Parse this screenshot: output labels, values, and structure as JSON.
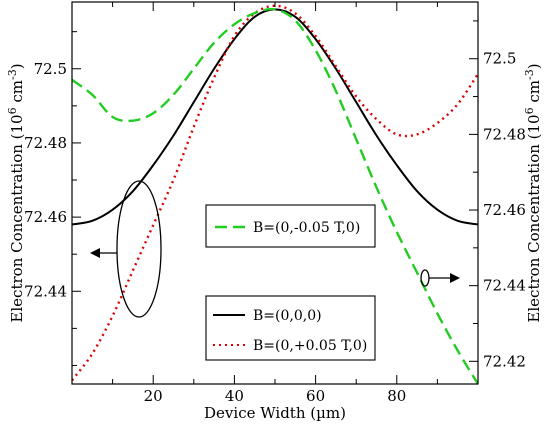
{
  "chart_data": {
    "type": "line",
    "title": "",
    "xlabel": "Device Width (µm)",
    "ylabel_left": "Electron Concentration (10",
    "ylabel_left_exp": "6",
    "ylabel_left_unit": " cm",
    "ylabel_left_unit_exp": "-3",
    "ylabel_left_close": ")",
    "ylabel_right": "Electron Concentration (10",
    "ylabel_right_exp": "6",
    "ylabel_right_unit": " cm",
    "ylabel_right_unit_exp": "-3",
    "ylabel_right_close": ")",
    "xlim": [
      0,
      100
    ],
    "ylim_left": [
      72.415,
      72.518
    ],
    "ylim_right": [
      72.414,
      72.515
    ],
    "x_ticks": [
      20,
      40,
      60,
      80
    ],
    "x_tick_labels": [
      "20",
      "40",
      "60",
      "80"
    ],
    "y_left_ticks": [
      72.44,
      72.46,
      72.48,
      72.5
    ],
    "y_left_tick_labels": [
      "72.44",
      "72.46",
      "72.48",
      "72.5"
    ],
    "y_right_ticks": [
      72.42,
      72.44,
      72.46,
      72.48,
      72.5
    ],
    "y_right_tick_labels": [
      "72.42",
      "72.44",
      "72.46",
      "72.48",
      "72.5"
    ],
    "grid": false,
    "series": [
      {
        "name": "B=(0,0,0)",
        "axis": "left",
        "color": "#000000",
        "style": "solid",
        "x": [
          0,
          5,
          10,
          15,
          20,
          25,
          30,
          35,
          40,
          45,
          50,
          55,
          60,
          65,
          70,
          75,
          80,
          85,
          90,
          95,
          100
        ],
        "y": [
          72.458,
          72.459,
          72.462,
          72.467,
          72.474,
          72.482,
          72.491,
          72.5,
          72.508,
          72.514,
          72.516,
          72.514,
          72.508,
          72.5,
          72.491,
          72.482,
          72.474,
          72.467,
          72.462,
          72.459,
          72.458
        ]
      },
      {
        "name": "B=(0,-0.05 T,0)",
        "axis": "left",
        "color": "#22cc22",
        "style": "dashed",
        "x": [
          0,
          5,
          10,
          15,
          20,
          25,
          30,
          35,
          40,
          45,
          50,
          55,
          60,
          65,
          70,
          75,
          80,
          85,
          90,
          95,
          100
        ],
        "y": [
          72.497,
          72.493,
          72.487,
          72.486,
          72.488,
          72.493,
          72.5,
          72.507,
          72.512,
          72.515,
          72.516,
          72.513,
          72.505,
          72.494,
          72.481,
          72.468,
          72.456,
          72.445,
          72.434,
          72.424,
          72.415
        ]
      },
      {
        "name": "B=(0,+0.05 T,0)",
        "axis": "right",
        "color": "#dd0000",
        "style": "dotted",
        "x": [
          0,
          5,
          10,
          15,
          20,
          25,
          30,
          35,
          40,
          45,
          50,
          55,
          60,
          65,
          70,
          75,
          80,
          85,
          90,
          95,
          100
        ],
        "y": [
          72.415,
          72.422,
          72.432,
          72.444,
          72.456,
          72.468,
          72.482,
          72.495,
          72.506,
          72.512,
          72.514,
          72.512,
          72.506,
          72.498,
          72.49,
          72.484,
          72.48,
          72.48,
          72.483,
          72.488,
          72.496
        ]
      }
    ],
    "legend": [
      {
        "label": "B=(0,-0.05 T,0)",
        "color": "#22cc22",
        "style": "dashed",
        "placement": "center"
      },
      {
        "label": "B=(0,0,0)",
        "color": "#000000",
        "style": "solid",
        "placement": "lower-center"
      },
      {
        "label": "B=(0,+0.05 T,0)",
        "color": "#dd0000",
        "style": "dotted",
        "placement": "lower-center"
      }
    ],
    "annotations": [
      {
        "type": "ellipse-arrow",
        "points_to": "left axis"
      },
      {
        "type": "ellipse-arrow",
        "points_to": "right axis"
      }
    ]
  }
}
